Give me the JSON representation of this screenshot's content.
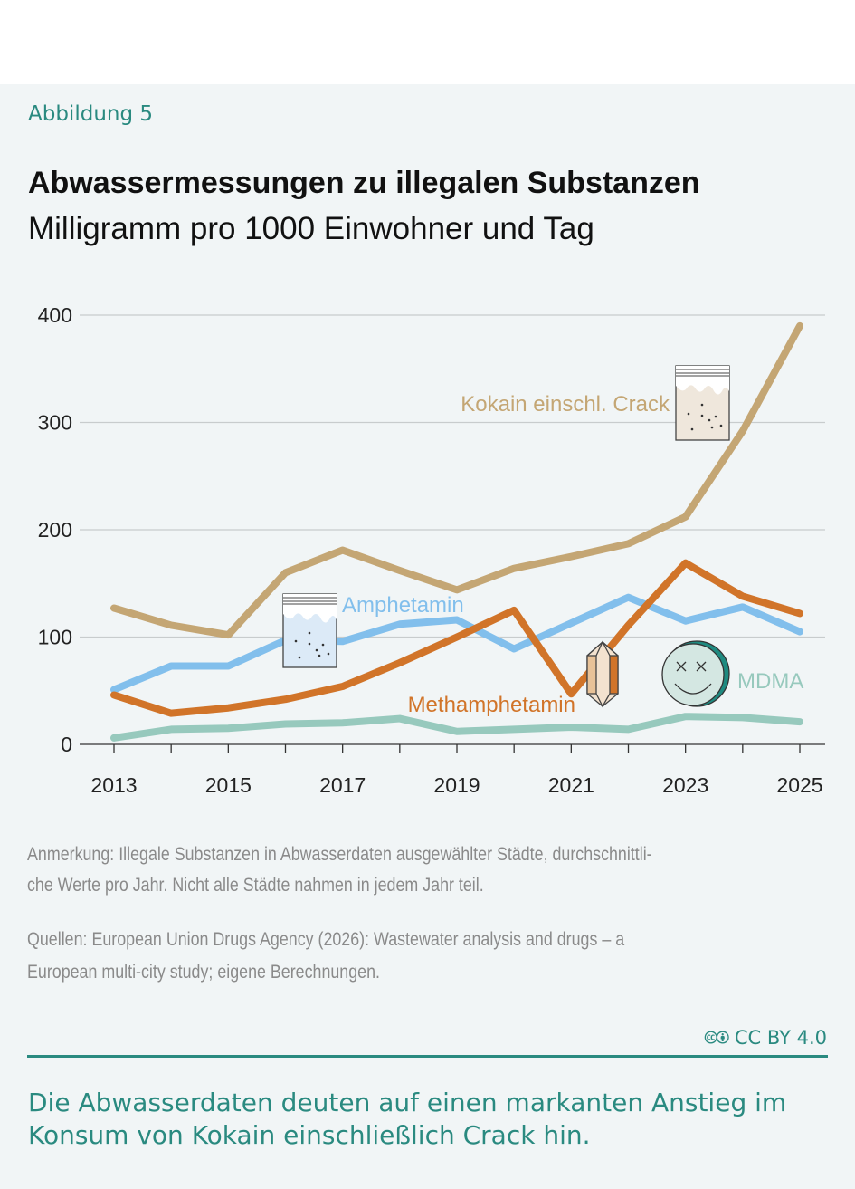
{
  "figure_label": "Abbildung 5",
  "chart_data": {
    "type": "line",
    "title": "Abwassermessungen zu illegalen Substanzen",
    "subtitle": "Milligramm pro 1000 Einwohner und Tag",
    "x": [
      2013,
      2014,
      2015,
      2016,
      2017,
      2018,
      2019,
      2020,
      2021,
      2022,
      2023,
      2024,
      2025
    ],
    "x_tick_labels": [
      "2013",
      "2015",
      "2017",
      "2019",
      "2021",
      "2023",
      "2025"
    ],
    "y_ticks": [
      0,
      100,
      200,
      300,
      400
    ],
    "ylim": [
      0,
      400
    ],
    "grid": true,
    "series": [
      {
        "name": "Kokain einschl. Crack",
        "color": "#c4a674",
        "icon": "powder-bag-icon",
        "values": [
          127,
          111,
          102,
          160,
          181,
          162,
          144,
          164,
          175,
          187,
          212,
          292,
          390
        ]
      },
      {
        "name": "Amphetamin",
        "color": "#82bfec",
        "icon": "powder-bag-icon",
        "values": [
          51,
          73,
          73,
          97,
          96,
          112,
          116,
          89,
          113,
          137,
          115,
          128,
          105
        ]
      },
      {
        "name": "Methamphetamin",
        "color": "#d17429",
        "icon": "crystal-icon",
        "values": [
          46,
          29,
          34,
          42,
          54,
          76,
          100,
          125,
          47,
          111,
          169,
          138,
          122
        ]
      },
      {
        "name": "MDMA",
        "color": "#97c9bd",
        "icon": "pill-face-icon",
        "values": [
          6,
          14,
          15,
          19,
          20,
          24,
          12,
          14,
          16,
          14,
          26,
          25,
          21
        ]
      }
    ]
  },
  "note": [
    "Anmerkung: Illegale Substanzen in Abwasserdaten ausgewählter Städte, durchschnittli-",
    "che Werte pro Jahr. Nicht alle Städte nahmen in jedem Jahr teil."
  ],
  "source": [
    "Quellen: European Union Drugs Agency (2026): Wastewater analysis and drugs – a",
    "European multi-city study; eigene Berechnungen."
  ],
  "license": "CC BY 4.0",
  "conclusion": "Die Abwasserdaten deuten auf einen markanten Anstieg im Konsum von Kokain einschließlich Crack hin."
}
